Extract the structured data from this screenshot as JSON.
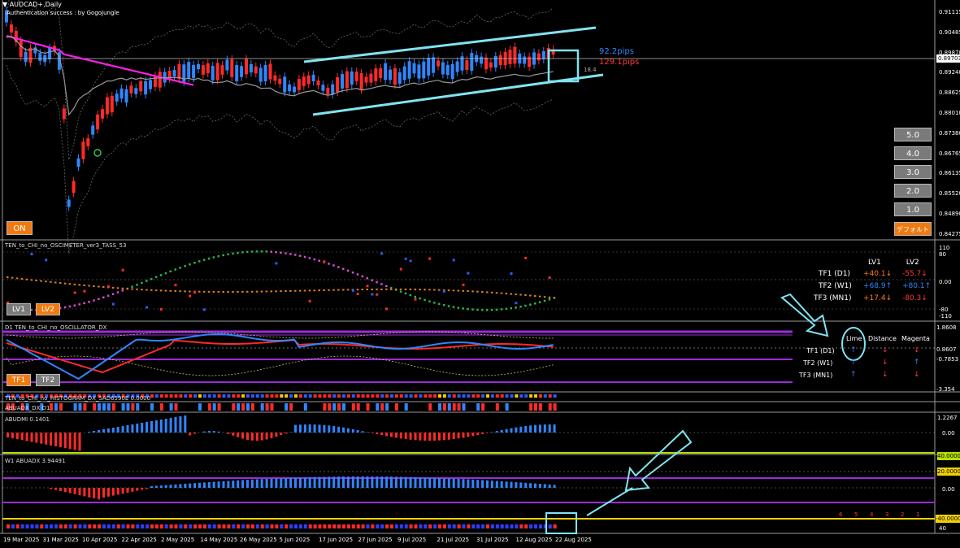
{
  "symbol_label": "AUDCAD+,Daily",
  "auth_text": "Authentication success : by GogoJungle",
  "price_scale": [
    "0.91115",
    "0.90485",
    "0.89870",
    "0.89240",
    "0.88625",
    "0.88010",
    "0.87380",
    "0.86765",
    "0.86135",
    "0.85520",
    "0.84890",
    "0.84275"
  ],
  "current_price": "0.89703",
  "pips_blue": "92.2pips",
  "pips_red": "129.1pips",
  "small_value": "18.4",
  "lv_buttons": [
    "5.0",
    "4.0",
    "3.0",
    "2.0",
    "1.0"
  ],
  "default_button": "デフォルト",
  "on_button": "ON",
  "osc_title": "TEN_to_CHI_no_OSCIMETER_ver3_TASS_53",
  "osc_scale": [
    "110",
    "80",
    "0.00",
    "-80",
    "-110"
  ],
  "osc_buttons": [
    "LV1",
    "LV2"
  ],
  "lv_table": {
    "headers": [
      "LV1",
      "LV2"
    ],
    "rows": [
      {
        "label": "TF1 (D1)",
        "lv1": "+40.1↓",
        "lv2": "-55.7↓"
      },
      {
        "label": "TF2 (W1)",
        "lv1": "+68.9↑",
        "lv2": "+80.1↑"
      },
      {
        "label": "TF3 (MN1)",
        "lv1": "+17.4↓",
        "lv2": "-80.3↓"
      }
    ]
  },
  "dx_title": "D1 TEN_to_CHI_no_OSCILLATOR_DX",
  "dx_scale": [
    "1.8608",
    "0.8607",
    "-0.7853",
    "-3.354"
  ],
  "dx_buttons": [
    "TF1",
    "TF2"
  ],
  "dx_table": {
    "headers": [
      "Lime",
      "Distance",
      "Magenta"
    ],
    "rows": [
      {
        "label": "TF1 (D1)",
        "a": "↑",
        "b": "↓",
        "c": "↓"
      },
      {
        "label": "TF2 (W1)",
        "a": "↑",
        "b": "↓",
        "c": "↑"
      },
      {
        "label": "TF3 (MN1)",
        "a": "↑",
        "b": "↓",
        "c": "↓"
      }
    ]
  },
  "hist_title": "TEN_to_CHI_no_HISTOGRAM_DX_5AD6590E 0.0000",
  "abuadx_dx_title": "ABUADX_DX D1",
  "abudmi_title": "ABUDMI  0.1401",
  "abudmi_scale": [
    "1.2267",
    "0.00",
    "40.0000"
  ],
  "w1_title": "W1 ABUADX  3.94491",
  "w1_scale": [
    "20.0000",
    "0.00",
    "-40.0000"
  ],
  "bottom_nums": [
    "6",
    "5",
    "4",
    "3",
    "2",
    "1"
  ],
  "bottom_scale": "40",
  "dates": [
    "19 Mar 2025",
    "31 Mar 2025",
    "10 Apr 2025",
    "22 Apr 2025",
    "2 May 2025",
    "14 May 2025",
    "26 May 2025",
    "5 Jun 2025",
    "17 Jun 2025",
    "27 Jun 2025",
    "9 Jul 2025",
    "21 Jul 2025",
    "31 Jul 2025",
    "12 Aug 2025",
    "22 Aug 2025"
  ]
}
